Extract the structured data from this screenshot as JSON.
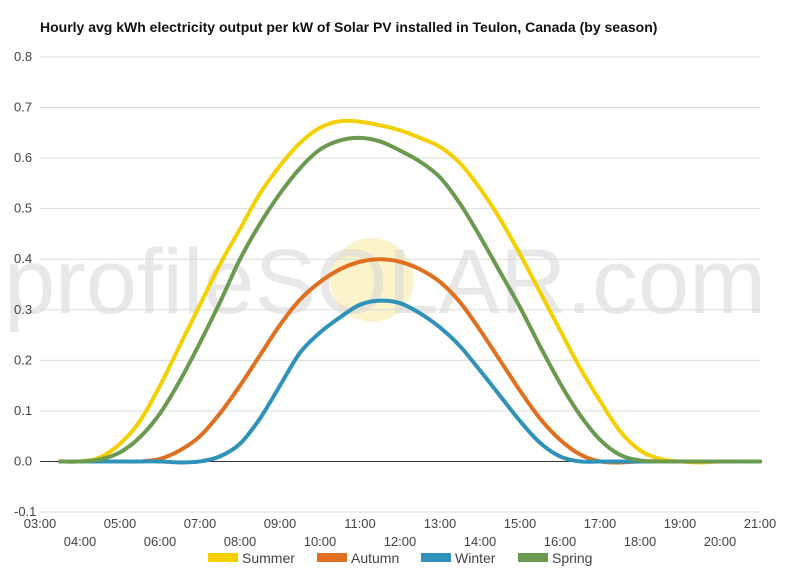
{
  "chart_data": {
    "type": "line",
    "title": "Hourly avg kWh electricity output per kW of Solar PV installed in Teulon, Canada (by season)",
    "xlabel": "",
    "ylabel": "",
    "ylim": [
      -0.1,
      0.8
    ],
    "yticks": [
      -0.1,
      0.0,
      0.1,
      0.2,
      0.3,
      0.4,
      0.5,
      0.6,
      0.7,
      0.8
    ],
    "ytick_labels": [
      "-0.1",
      "0.0",
      "0.1",
      "0.2",
      "0.3",
      "0.4",
      "0.5",
      "0.6",
      "0.7",
      "0.8"
    ],
    "xlim": [
      3,
      21
    ],
    "x_ticks": [
      "03:00",
      "04:00",
      "05:00",
      "06:00",
      "07:00",
      "08:00",
      "09:00",
      "10:00",
      "11:00",
      "12:00",
      "13:00",
      "14:00",
      "15:00",
      "16:00",
      "17:00",
      "18:00",
      "19:00",
      "20:00",
      "21:00"
    ],
    "grid": "horizontal",
    "legend_position": "bottom",
    "watermark": "profileSOLAR.com",
    "x": [
      3.5,
      4,
      4.5,
      5,
      5.5,
      6,
      6.5,
      7,
      7.5,
      8,
      8.5,
      9,
      9.5,
      10,
      10.5,
      11,
      11.5,
      12,
      12.5,
      13,
      13.5,
      14,
      14.5,
      15,
      15.5,
      16,
      16.5,
      17,
      17.5,
      18,
      18.5,
      19,
      19.5,
      20,
      20.5,
      21
    ],
    "series": [
      {
        "name": "Summer",
        "color": "#f5d000",
        "values": [
          0.0,
          0.0,
          0.008,
          0.035,
          0.08,
          0.15,
          0.23,
          0.31,
          0.39,
          0.46,
          0.53,
          0.585,
          0.63,
          0.66,
          0.673,
          0.672,
          0.665,
          0.655,
          0.64,
          0.622,
          0.59,
          0.54,
          0.48,
          0.41,
          0.335,
          0.26,
          0.185,
          0.12,
          0.06,
          0.022,
          0.005,
          0.0,
          -0.002,
          0.0,
          0.0,
          0.0
        ]
      },
      {
        "name": "Autumn",
        "color": "#e07020",
        "values": [
          0.0,
          0.0,
          0.0,
          0.0,
          0.0,
          0.005,
          0.022,
          0.05,
          0.095,
          0.15,
          0.21,
          0.27,
          0.32,
          0.355,
          0.38,
          0.395,
          0.4,
          0.395,
          0.38,
          0.355,
          0.315,
          0.26,
          0.2,
          0.14,
          0.085,
          0.043,
          0.014,
          0.0,
          -0.002,
          0.0,
          0.0,
          0.0,
          0.0,
          0.0,
          0.0,
          0.0
        ]
      },
      {
        "name": "Winter",
        "color": "#2f92b8",
        "values": [
          0.0,
          0.0,
          0.0,
          0.0,
          0.0,
          0.0,
          -0.002,
          0.0,
          0.01,
          0.035,
          0.085,
          0.15,
          0.215,
          0.255,
          0.285,
          0.31,
          0.318,
          0.313,
          0.293,
          0.265,
          0.228,
          0.18,
          0.13,
          0.08,
          0.037,
          0.01,
          0.0,
          0.0,
          0.0,
          0.0,
          0.0,
          0.0,
          0.0,
          0.0,
          0.0,
          0.0
        ]
      },
      {
        "name": "Spring",
        "color": "#6a9a50",
        "values": [
          0.0,
          0.0,
          0.004,
          0.018,
          0.048,
          0.095,
          0.16,
          0.235,
          0.315,
          0.4,
          0.47,
          0.53,
          0.58,
          0.617,
          0.635,
          0.64,
          0.633,
          0.615,
          0.593,
          0.562,
          0.51,
          0.445,
          0.375,
          0.305,
          0.228,
          0.155,
          0.092,
          0.043,
          0.013,
          0.002,
          0.0,
          0.0,
          0.0,
          0.0,
          0.0,
          0.0
        ]
      }
    ]
  }
}
